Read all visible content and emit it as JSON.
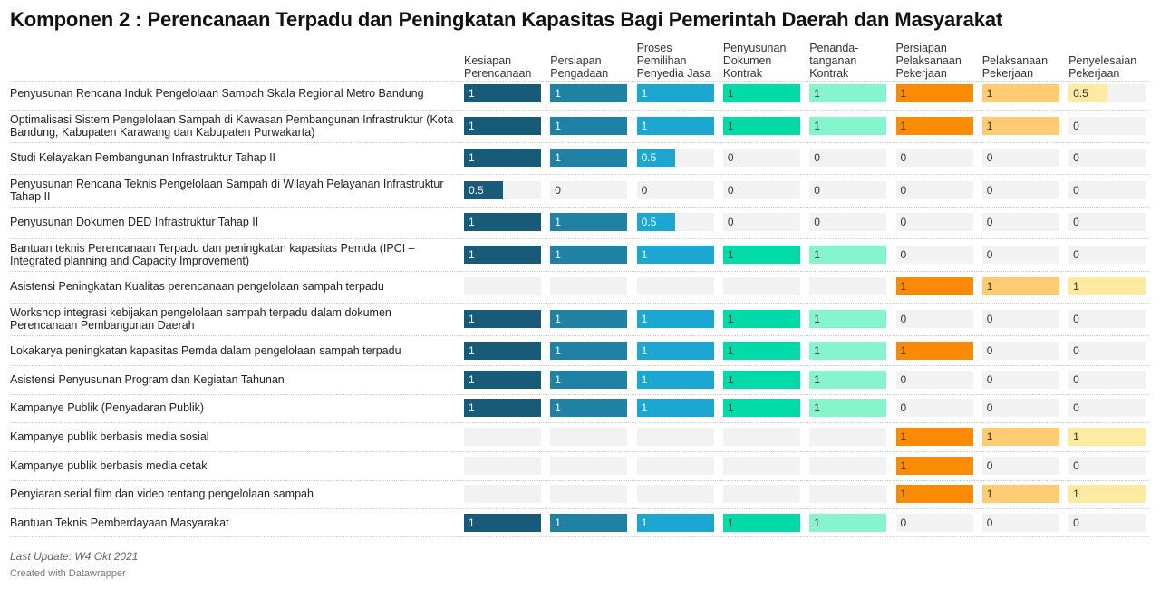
{
  "title": "Komponen 2 : Perencanaan Terpadu dan Peningkatan Kapasitas Bagi Pemerintah Daerah dan Masyarakat",
  "footer": {
    "last_update": "Last Update: W4 Okt 2021",
    "credit": "Created with Datawrapper"
  },
  "chart_data": {
    "type": "table",
    "value_range": [
      0,
      1
    ],
    "columns": [
      {
        "label": "Kesiapan\nPerencanaan",
        "color": "#175b78"
      },
      {
        "label": "Persiapan\nPengadaan",
        "color": "#1f82a4"
      },
      {
        "label": "Proses\nPemilihan\nPenyedia Jasa",
        "color": "#1ca7d3"
      },
      {
        "label": "Penyusunan\nDokumen\nKontrak",
        "color": "#00dba8"
      },
      {
        "label": "Penanda-\ntanganan\nKontrak",
        "color": "#86f5cd"
      },
      {
        "label": "Persiapan\nPelaksanaan\nPekerjaan",
        "color": "#fb8a04"
      },
      {
        "label": "Pelaksanaan\nPekerjaan",
        "color": "#fccb74"
      },
      {
        "label": "Penyelesaian\nPekerjaan",
        "color": "#feeaa0"
      }
    ],
    "rows": [
      {
        "label": "Penyusunan Rencana Induk Pengelolaan Sampah Skala Regional Metro Bandung",
        "values": [
          "1",
          "1",
          "1",
          "1",
          "1",
          "1",
          "1",
          "0.5"
        ]
      },
      {
        "label": "Optimalisasi Sistem Pengelolaan Sampah di Kawasan Pembangunan Infrastruktur (Kota Bandung, Kabupaten Karawang dan Kabupaten Purwakarta)",
        "values": [
          "1",
          "1",
          "1",
          "1",
          "1",
          "1",
          "1",
          "0"
        ]
      },
      {
        "label": "Studi Kelayakan Pembangunan Infrastruktur Tahap II",
        "values": [
          "1",
          "1",
          "0.5",
          "0",
          "0",
          "0",
          "0",
          "0"
        ]
      },
      {
        "label": "Penyusunan Rencana Teknis Pengelolaan Sampah di Wilayah Pelayanan Infrastruktur Tahap II",
        "values": [
          "0.5",
          "0",
          "0",
          "0",
          "0",
          "0",
          "0",
          "0"
        ]
      },
      {
        "label": "Penyusunan Dokumen DED Infrastruktur Tahap II",
        "values": [
          "1",
          "1",
          "0.5",
          "0",
          "0",
          "0",
          "0",
          "0"
        ]
      },
      {
        "label": "Bantuan teknis Perencanaan Terpadu dan peningkatan kapasitas Pemda (IPCI – Integrated planning and Capacity Improvement)",
        "values": [
          "1",
          "1",
          "1",
          "1",
          "1",
          "0",
          "0",
          "0"
        ]
      },
      {
        "label": "Asistensi Peningkatan Kualitas perencanaan pengelolaan sampah terpadu",
        "values": [
          "",
          "",
          "",
          "",
          "",
          "1",
          "1",
          "1"
        ]
      },
      {
        "label": "Workshop integrasi kebijakan pengelolaan sampah terpadu dalam dokumen Perencanaan Pembangunan Daerah",
        "values": [
          "1",
          "1",
          "1",
          "1",
          "1",
          "0",
          "0",
          "0"
        ]
      },
      {
        "label": "Lokakarya peningkatan kapasitas Pemda dalam pengelolaan sampah terpadu",
        "values": [
          "1",
          "1",
          "1",
          "1",
          "1",
          "1",
          "0",
          "0"
        ]
      },
      {
        "label": "Asistensi Penyusunan Program dan Kegiatan Tahunan",
        "values": [
          "1",
          "1",
          "1",
          "1",
          "1",
          "0",
          "0",
          "0"
        ]
      },
      {
        "label": "Kampanye Publik (Penyadaran Publik)",
        "values": [
          "1",
          "1",
          "1",
          "1",
          "1",
          "0",
          "0",
          "0"
        ]
      },
      {
        "label": "Kampanye publik berbasis media sosial",
        "values": [
          "",
          "",
          "",
          "",
          "",
          "1",
          "1",
          "1"
        ]
      },
      {
        "label": "Kampanye publik berbasis media cetak",
        "values": [
          "",
          "",
          "",
          "",
          "",
          "1",
          "0",
          "0"
        ]
      },
      {
        "label": "Penyiaran serial film dan video tentang pengelolaan sampah",
        "values": [
          "",
          "",
          "",
          "",
          "",
          "1",
          "1",
          "1"
        ]
      },
      {
        "label": "Bantuan Teknis Pemberdayaan Masyarakat",
        "values": [
          "1",
          "1",
          "1",
          "1",
          "1",
          "0",
          "0",
          "0"
        ]
      }
    ]
  }
}
